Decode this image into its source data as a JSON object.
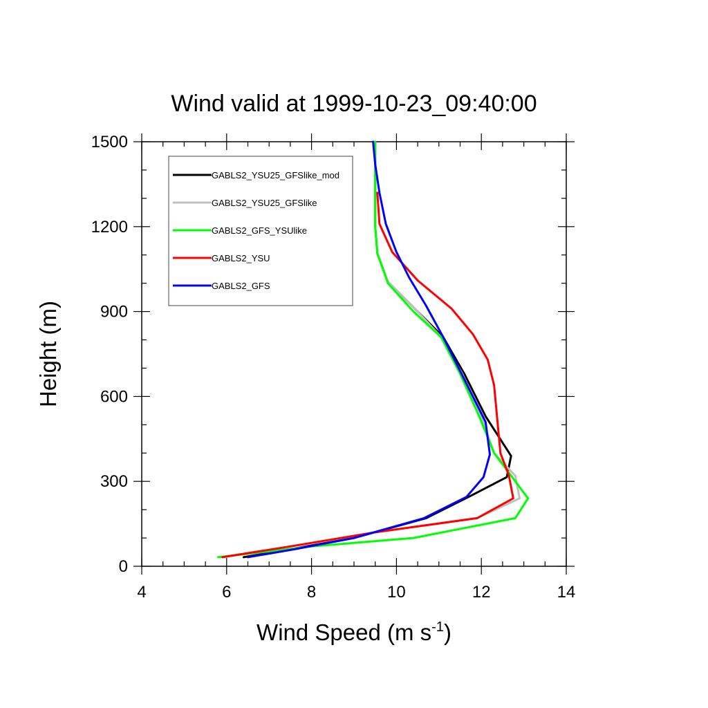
{
  "chart_data": {
    "type": "line",
    "title": "Wind valid at 1999-10-23_09:40:00",
    "xlabel": "Wind Speed (m s",
    "xlabel_sup": "-1",
    "xlabel_close": ")",
    "ylabel": "Height (m)",
    "xlim": [
      4,
      14
    ],
    "ylim": [
      0,
      1500
    ],
    "xticks": [
      4,
      6,
      8,
      10,
      12,
      14
    ],
    "yticks": [
      0,
      300,
      600,
      900,
      1200,
      1500
    ],
    "grid": false,
    "legend_position": "top-left",
    "series": [
      {
        "name": "GABLS2_YSU25_GFSlike_mod",
        "color": "#000000",
        "points": [
          [
            6.4,
            32
          ],
          [
            7.5,
            60
          ],
          [
            9.0,
            100
          ],
          [
            10.7,
            170
          ],
          [
            11.7,
            245
          ],
          [
            12.6,
            315
          ],
          [
            12.7,
            390
          ],
          [
            12.1,
            530
          ],
          [
            11.6,
            680
          ],
          [
            11.1,
            810
          ],
          [
            10.5,
            900
          ],
          [
            9.8,
            1005
          ],
          [
            9.55,
            1105
          ],
          [
            9.5,
            1200
          ],
          [
            9.5,
            1300
          ],
          [
            9.5,
            1400
          ],
          [
            9.5,
            1500
          ]
        ]
      },
      {
        "name": "GABLS2_YSU25_GFSlike",
        "color": "#c0c0c0",
        "points": [
          [
            5.9,
            32
          ],
          [
            7.5,
            70
          ],
          [
            9.5,
            120
          ],
          [
            11.9,
            170
          ],
          [
            12.9,
            240
          ],
          [
            12.8,
            320
          ],
          [
            12.3,
            400
          ],
          [
            12.0,
            530
          ],
          [
            11.55,
            680
          ],
          [
            11.05,
            810
          ],
          [
            10.5,
            900
          ],
          [
            9.8,
            1005
          ],
          [
            9.55,
            1105
          ],
          [
            9.5,
            1200
          ],
          [
            9.5,
            1300
          ],
          [
            9.5,
            1400
          ],
          [
            9.5,
            1500
          ]
        ]
      },
      {
        "name": "GABLS2_GFS_YSUlike",
        "color": "#00ff00",
        "points": [
          [
            5.8,
            32
          ],
          [
            8.0,
            70
          ],
          [
            10.4,
            100
          ],
          [
            12.8,
            170
          ],
          [
            13.1,
            240
          ],
          [
            12.7,
            320
          ],
          [
            12.3,
            400
          ],
          [
            11.95,
            530
          ],
          [
            11.5,
            680
          ],
          [
            11.05,
            810
          ],
          [
            10.4,
            900
          ],
          [
            9.8,
            1000
          ],
          [
            9.55,
            1105
          ],
          [
            9.5,
            1200
          ],
          [
            9.5,
            1300
          ],
          [
            9.5,
            1400
          ],
          [
            9.5,
            1500
          ]
        ]
      },
      {
        "name": "GABLS2_YSU",
        "color": "#ff0000",
        "points": [
          [
            5.9,
            32
          ],
          [
            7.5,
            70
          ],
          [
            9.5,
            120
          ],
          [
            11.9,
            170
          ],
          [
            12.75,
            240
          ],
          [
            12.65,
            320
          ],
          [
            12.45,
            400
          ],
          [
            12.3,
            640
          ],
          [
            12.15,
            730
          ],
          [
            11.8,
            820
          ],
          [
            11.3,
            910
          ],
          [
            10.5,
            1010
          ],
          [
            9.9,
            1110
          ],
          [
            9.6,
            1210
          ],
          [
            9.55,
            1320
          ]
        ]
      },
      {
        "name": "GABLS2_GFS",
        "color": "#0000ff",
        "points": [
          [
            6.5,
            32
          ],
          [
            7.6,
            60
          ],
          [
            9.0,
            100
          ],
          [
            10.65,
            170
          ],
          [
            11.65,
            245
          ],
          [
            12.05,
            315
          ],
          [
            12.2,
            395
          ],
          [
            12.1,
            510
          ],
          [
            11.6,
            660
          ],
          [
            11.1,
            810
          ],
          [
            10.7,
            920
          ],
          [
            10.3,
            1020
          ],
          [
            10.0,
            1110
          ],
          [
            9.75,
            1210
          ],
          [
            9.6,
            1320
          ],
          [
            9.5,
            1420
          ],
          [
            9.45,
            1500
          ]
        ]
      }
    ]
  }
}
